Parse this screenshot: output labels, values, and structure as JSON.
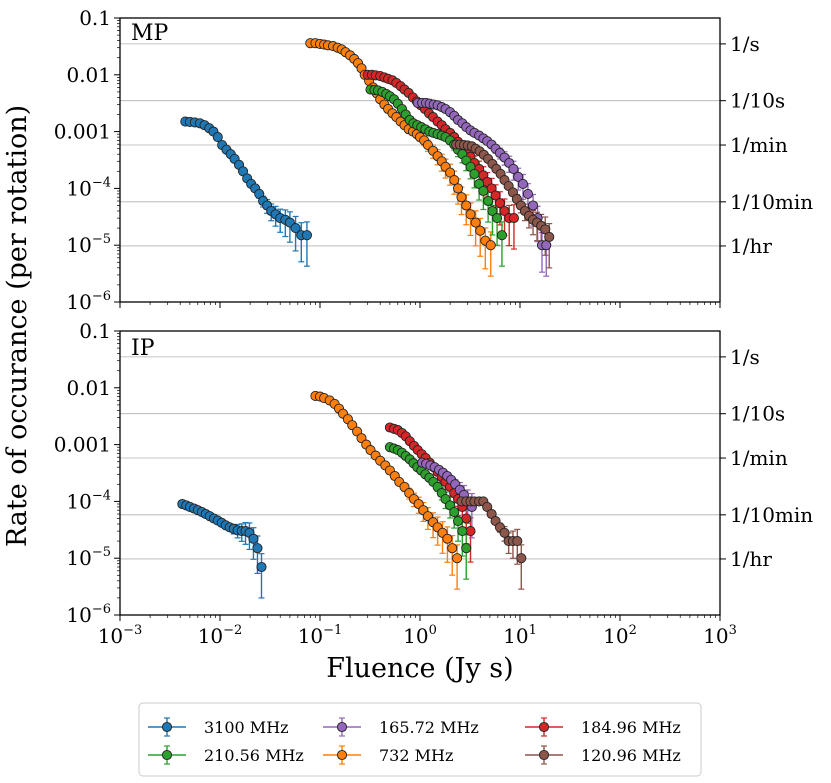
{
  "figure": {
    "ylabel": "Rate of occurance (per rotation)",
    "xlabel": "Fluence (Jy s)"
  },
  "legend": {
    "entries": [
      {
        "label": "3100 MHz",
        "color": "#1f77b4"
      },
      {
        "label": "210.56 MHz",
        "color": "#2ca02c"
      },
      {
        "label": "165.72 MHz",
        "color": "#9467bd"
      },
      {
        "label": "732 MHz",
        "color": "#ff7f0e"
      },
      {
        "label": "184.96 MHz",
        "color": "#d62728"
      },
      {
        "label": "120.96 MHz",
        "color": "#8c564b"
      }
    ]
  },
  "chart_data": [
    {
      "type": "scatter",
      "title": "MP",
      "xlabel": "Fluence (Jy s)",
      "ylabel": "Rate of occurance (per rotation)",
      "xscale": "log",
      "yscale": "log",
      "xlim": [
        0.001,
        1000
      ],
      "ylim": [
        1e-06,
        0.1
      ],
      "x_ticks": [
        "10^-3",
        "10^-2",
        "10^-1",
        "10^0",
        "10^1",
        "10^2",
        "10^3"
      ],
      "y_ticks": [
        "10^-6",
        "10^-5",
        "10^-4",
        "0.001",
        "0.01",
        "0.1"
      ],
      "secondary_y_ticks": [
        {
          "label": "1/s",
          "value": 0.035
        },
        {
          "label": "1/10s",
          "value": 0.0035
        },
        {
          "label": "1/min",
          "value": 0.00058
        },
        {
          "label": "1/10min",
          "value": 5.8e-05
        },
        {
          "label": "1/hr",
          "value": 9.7e-06
        }
      ],
      "grid": "horizontal lines at secondary ticks",
      "series": [
        {
          "name": "3100 MHz",
          "color": "#1f77b4",
          "x": [
            0.0045,
            0.005,
            0.0056,
            0.0063,
            0.007,
            0.0078,
            0.0086,
            0.0095,
            0.0105,
            0.0116,
            0.0128,
            0.014,
            0.0155,
            0.017,
            0.0187,
            0.0205,
            0.0225,
            0.0247,
            0.027,
            0.0296,
            0.0325,
            0.036,
            0.04,
            0.045,
            0.05,
            0.057,
            0.065,
            0.074
          ],
          "y": [
            0.0015,
            0.00148,
            0.00145,
            0.0014,
            0.0013,
            0.00115,
            0.001,
            0.0008,
            0.00058,
            0.00048,
            0.0004,
            0.00033,
            0.00026,
            0.0002,
            0.00015,
            0.00012,
            0.0001,
            8e-05,
            6e-05,
            5e-05,
            4e-05,
            3.5e-05,
            3e-05,
            2.8e-05,
            2.5e-05,
            2e-05,
            1.5e-05,
            1.5e-05
          ]
        },
        {
          "name": "732 MHz",
          "color": "#ff7f0e",
          "x": [
            0.08,
            0.09,
            0.1,
            0.11,
            0.12,
            0.135,
            0.15,
            0.165,
            0.18,
            0.2,
            0.22,
            0.24,
            0.26,
            0.28,
            0.31,
            0.34,
            0.37,
            0.4,
            0.44,
            0.48,
            0.53,
            0.58,
            0.64,
            0.7,
            0.77,
            0.85,
            0.93,
            1.0,
            1.1,
            1.2,
            1.35,
            1.5,
            1.65,
            1.8,
            2.0,
            2.2,
            2.4,
            2.6,
            2.9,
            3.2,
            3.6,
            4.0,
            4.5,
            5.1
          ],
          "y": [
            0.036,
            0.036,
            0.035,
            0.034,
            0.033,
            0.032,
            0.03,
            0.028,
            0.025,
            0.022,
            0.019,
            0.016,
            0.013,
            0.01,
            0.0078,
            0.006,
            0.0047,
            0.0037,
            0.003,
            0.0025,
            0.0021,
            0.0018,
            0.0015,
            0.0013,
            0.0011,
            0.001,
            0.0009,
            0.0008,
            0.0007,
            0.00058,
            0.00046,
            0.00037,
            0.0003,
            0.00024,
            0.00019,
            0.00014,
            0.0001,
            7e-05,
            5e-05,
            3.5e-05,
            2.5e-05,
            1.8e-05,
            1.2e-05,
            1e-05
          ]
        },
        {
          "name": "184.96 MHz",
          "color": "#d62728",
          "x": [
            0.3,
            0.33,
            0.36,
            0.4,
            0.44,
            0.48,
            0.53,
            0.58,
            0.64,
            0.7,
            0.77,
            0.85,
            0.93,
            1.02,
            1.12,
            1.23,
            1.35,
            1.5,
            1.65,
            1.8,
            2.0,
            2.2,
            2.4,
            2.65,
            2.9,
            3.2,
            3.5,
            3.9,
            4.3,
            4.7,
            5.2,
            5.7,
            6.3,
            7.0,
            7.8,
            8.7
          ],
          "y": [
            0.01,
            0.01,
            0.0098,
            0.0095,
            0.009,
            0.0085,
            0.008,
            0.0072,
            0.0063,
            0.0055,
            0.0048,
            0.004,
            0.0034,
            0.0029,
            0.0025,
            0.0021,
            0.0018,
            0.0015,
            0.0013,
            0.0011,
            0.00095,
            0.0008,
            0.00066,
            0.00055,
            0.00045,
            0.00036,
            0.00028,
            0.00022,
            0.00017,
            0.00013,
            0.0001,
            7.5e-05,
            5.5e-05,
            4e-05,
            3e-05,
            3e-05
          ]
        },
        {
          "name": "210.56 MHz",
          "color": "#2ca02c",
          "x": [
            0.32,
            0.35,
            0.38,
            0.42,
            0.46,
            0.5,
            0.55,
            0.6,
            0.66,
            0.72,
            0.79,
            0.86,
            0.94,
            1.03,
            1.13,
            1.24,
            1.36,
            1.5,
            1.65,
            1.8,
            2.0,
            2.2,
            2.4,
            2.65,
            2.9,
            3.2,
            3.5,
            3.9,
            4.3,
            4.8,
            5.3,
            5.9,
            6.6
          ],
          "y": [
            0.0055,
            0.0054,
            0.0053,
            0.005,
            0.0046,
            0.0042,
            0.0037,
            0.0031,
            0.0025,
            0.002,
            0.0016,
            0.0014,
            0.0013,
            0.0012,
            0.0011,
            0.001,
            0.00095,
            0.0009,
            0.00085,
            0.0008,
            0.0007,
            0.00059,
            0.00048,
            0.0004,
            0.00031,
            0.00024,
            0.00018,
            0.00012,
            9e-05,
            6e-05,
            4e-05,
            3e-05,
            1.5e-05
          ]
        },
        {
          "name": "165.72 MHz",
          "color": "#9467bd",
          "x": [
            0.95,
            1.05,
            1.15,
            1.25,
            1.37,
            1.5,
            1.65,
            1.8,
            2.0,
            2.2,
            2.4,
            2.65,
            2.9,
            3.2,
            3.5,
            3.9,
            4.3,
            4.7,
            5.2,
            5.7,
            6.3,
            7.0,
            7.8,
            8.6,
            9.6,
            10.7,
            12.0,
            13.5,
            15.0,
            16.6,
            18.3
          ],
          "y": [
            0.0032,
            0.0032,
            0.0032,
            0.0031,
            0.003,
            0.0029,
            0.0027,
            0.0025,
            0.0022,
            0.0019,
            0.0016,
            0.0014,
            0.0012,
            0.00105,
            0.00095,
            0.00085,
            0.00076,
            0.00068,
            0.00059,
            0.0005,
            0.00042,
            0.00035,
            0.00028,
            0.00022,
            0.00016,
            0.00012,
            8e-05,
            5e-05,
            3e-05,
            1e-05,
            1e-05
          ]
        },
        {
          "name": "120.96 MHz",
          "color": "#8c564b",
          "x": [
            2.3,
            2.5,
            2.75,
            3.0,
            3.3,
            3.6,
            3.95,
            4.35,
            4.8,
            5.3,
            5.8,
            6.4,
            7.0,
            7.7,
            8.5,
            9.3,
            10.2,
            11.2,
            12.3,
            13.5,
            14.8,
            16.3,
            17.9,
            19.6
          ],
          "y": [
            0.00059,
            0.00059,
            0.00058,
            0.00057,
            0.00055,
            0.0005,
            0.00045,
            0.00039,
            0.00033,
            0.00027,
            0.00022,
            0.00018,
            0.00014,
            0.00011,
            8.5e-05,
            6.5e-05,
            5e-05,
            4e-05,
            3.3e-05,
            2.8e-05,
            2.5e-05,
            2.2e-05,
            1.9e-05,
            1.4e-05
          ]
        }
      ]
    },
    {
      "type": "scatter",
      "title": "IP",
      "xlabel": "Fluence (Jy s)",
      "ylabel": "Rate of occurance (per rotation)",
      "xscale": "log",
      "yscale": "log",
      "xlim": [
        0.001,
        1000
      ],
      "ylim": [
        1e-06,
        0.1
      ],
      "x_ticks": [
        "10^-3",
        "10^-2",
        "10^-1",
        "10^0",
        "10^1",
        "10^2",
        "10^3"
      ],
      "y_ticks": [
        "10^-6",
        "10^-5",
        "10^-4",
        "0.001",
        "0.01",
        "0.1"
      ],
      "secondary_y_ticks": [
        {
          "label": "1/s",
          "value": 0.035
        },
        {
          "label": "1/10s",
          "value": 0.0035
        },
        {
          "label": "1/min",
          "value": 0.00058
        },
        {
          "label": "1/10min",
          "value": 5.8e-05
        },
        {
          "label": "1/hr",
          "value": 9.7e-06
        }
      ],
      "grid": "horizontal lines at secondary ticks",
      "series": [
        {
          "name": "3100 MHz",
          "color": "#1f77b4",
          "x": [
            0.0042,
            0.0046,
            0.005,
            0.0055,
            0.006,
            0.0066,
            0.0072,
            0.0079,
            0.0087,
            0.0095,
            0.0104,
            0.0114,
            0.0125,
            0.0137,
            0.015,
            0.0165,
            0.018,
            0.0197,
            0.0216,
            0.0237,
            0.026
          ],
          "y": [
            9e-05,
            8.5e-05,
            8e-05,
            7.5e-05,
            7e-05,
            6.5e-05,
            6e-05,
            5.5e-05,
            5e-05,
            4.6e-05,
            4.2e-05,
            3.8e-05,
            3.5e-05,
            3.3e-05,
            3.1e-05,
            3e-05,
            3e-05,
            2.8e-05,
            2.2e-05,
            1.5e-05,
            7e-06
          ]
        },
        {
          "name": "732 MHz",
          "color": "#ff7f0e",
          "x": [
            0.09,
            0.1,
            0.11,
            0.125,
            0.14,
            0.155,
            0.17,
            0.19,
            0.21,
            0.235,
            0.26,
            0.29,
            0.32,
            0.36,
            0.4,
            0.45,
            0.5,
            0.56,
            0.62,
            0.7,
            0.78,
            0.87,
            0.97,
            1.08,
            1.2,
            1.35,
            1.5,
            1.68,
            1.88,
            2.1,
            2.35
          ],
          "y": [
            0.0072,
            0.007,
            0.0066,
            0.006,
            0.0052,
            0.0043,
            0.0035,
            0.0028,
            0.0022,
            0.0017,
            0.0013,
            0.001,
            0.0008,
            0.00064,
            0.00052,
            0.00043,
            0.00035,
            0.00028,
            0.00022,
            0.00018,
            0.00014,
            0.00011,
            9e-05,
            7e-05,
            5.5e-05,
            4.3e-05,
            3.5e-05,
            2.8e-05,
            2.2e-05,
            1.5e-05,
            1e-05
          ]
        },
        {
          "name": "184.96 MHz",
          "color": "#d62728",
          "x": [
            0.5,
            0.55,
            0.6,
            0.66,
            0.72,
            0.79,
            0.87,
            0.95,
            1.04,
            1.14,
            1.25,
            1.37,
            1.5,
            1.65,
            1.8,
            2.0,
            2.2,
            2.4,
            2.65,
            2.9,
            3.2
          ],
          "y": [
            0.002,
            0.0019,
            0.0018,
            0.0016,
            0.0014,
            0.00115,
            0.00095,
            0.0008,
            0.00068,
            0.00058,
            0.00048,
            0.0004,
            0.00033,
            0.00027,
            0.00022,
            0.00018,
            0.00014,
            0.00011,
            8e-05,
            5e-05,
            3e-05
          ]
        },
        {
          "name": "210.56 MHz",
          "color": "#2ca02c",
          "x": [
            0.5,
            0.55,
            0.6,
            0.66,
            0.72,
            0.79,
            0.86,
            0.94,
            1.03,
            1.13,
            1.24,
            1.36,
            1.5,
            1.65,
            1.8,
            2.0,
            2.2,
            2.4,
            2.65,
            2.9
          ],
          "y": [
            0.0009,
            0.00085,
            0.0008,
            0.00072,
            0.00063,
            0.00055,
            0.00047,
            0.0004,
            0.00035,
            0.0003,
            0.00026,
            0.00022,
            0.00018,
            0.00014,
            0.00011,
            8.5e-05,
            6.5e-05,
            4.5e-05,
            3e-05,
            1.5e-05
          ]
        },
        {
          "name": "165.72 MHz",
          "color": "#9467bd",
          "x": [
            1.05,
            1.15,
            1.27,
            1.4,
            1.55,
            1.7,
            1.87,
            2.05,
            2.25,
            2.5,
            2.75,
            3.0,
            3.3
          ],
          "y": [
            0.00048,
            0.00046,
            0.00043,
            0.0004,
            0.00036,
            0.00032,
            0.00028,
            0.00024,
            0.0002,
            0.00016,
            0.00013,
            0.0001,
            8e-05
          ]
        },
        {
          "name": "120.96 MHz",
          "color": "#8c564b",
          "x": [
            2.6,
            2.9,
            3.2,
            3.5,
            3.9,
            4.3,
            4.7,
            5.2,
            5.7,
            6.3,
            7.0,
            7.7,
            8.5,
            9.4,
            10.3
          ],
          "y": [
            0.0001,
            0.0001,
            0.0001,
            0.0001,
            0.0001,
            0.0001,
            8e-05,
            6e-05,
            4.5e-05,
            3.5e-05,
            2.8e-05,
            2e-05,
            2e-05,
            2e-05,
            1e-05
          ]
        }
      ]
    }
  ]
}
